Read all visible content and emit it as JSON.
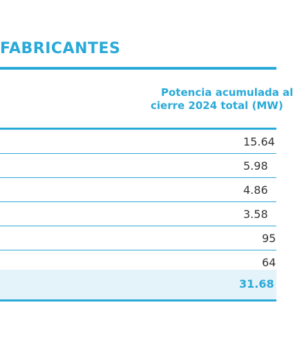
{
  "title": "FABRICANTES",
  "table": {
    "header_line1": "Potencia acumulada al",
    "header_line2": "cierre 2024 total (MW)",
    "rows": [
      "15.64",
      "5.98",
      "4.86",
      "3.58",
      "95",
      "64"
    ],
    "total": "31.68"
  },
  "colors": {
    "accent": "#29a9d8",
    "total_bg": "#e4f2f9",
    "text": "#333333"
  }
}
